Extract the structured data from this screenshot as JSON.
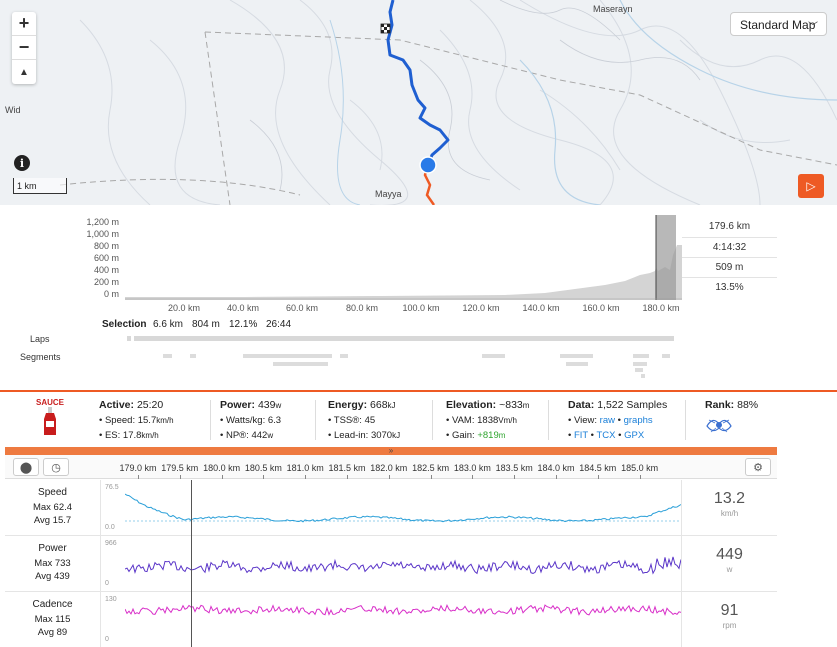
{
  "map": {
    "zoom_in": "+",
    "zoom_out": "−",
    "compass": "▲",
    "info": "i",
    "scale_label": "1 km",
    "place_labels": [
      "Maserayn",
      "Wid",
      "Mayya"
    ],
    "map_type": "Standard Map",
    "colors": {
      "route": "#1f5fd1",
      "route_tail": "#ee5a24",
      "marker": "#2a7be8"
    }
  },
  "elevation": {
    "y_labels": [
      "1,200 m",
      "1,000 m",
      "800 m",
      "600 m",
      "400 m",
      "200 m",
      "0 m"
    ],
    "x_labels": [
      "20.0 km",
      "40.0 km",
      "60.0 km",
      "80.0 km",
      "100.0 km",
      "120.0 km",
      "140.0 km",
      "160.0 km",
      "180.0 km"
    ],
    "stats": [
      "179.6 km",
      "4:14:32",
      "509 m",
      "13.5%"
    ],
    "selection": {
      "label": "Selection",
      "distance": "6.6 km",
      "elevation": "804 m",
      "grade": "12.1%",
      "time": "26:44"
    },
    "laps_label": "Laps",
    "segments_label": "Segments"
  },
  "info": {
    "logo": "SAUCE",
    "active": {
      "label": "Active:",
      "value": "25:20",
      "speed_label": "Speed:",
      "speed": "15.7",
      "speed_unit": "km/h",
      "es_label": "ES:",
      "es": "17.8",
      "es_unit": "km/h"
    },
    "power": {
      "label": "Power:",
      "value": "439",
      "unit": "w",
      "wkg_label": "Watts/kg:",
      "wkg": "6.3",
      "np_label": "NP®:",
      "np": "442",
      "np_unit": "w"
    },
    "energy": {
      "label": "Energy:",
      "value": "668",
      "unit": "kJ",
      "tss_label": "TSS®:",
      "tss": "45",
      "leadin_label": "Lead-in:",
      "leadin": "3070",
      "leadin_unit": "kJ"
    },
    "elevation": {
      "label": "Elevation:",
      "value": "~833",
      "unit": "m",
      "vam_label": "VAM:",
      "vam": "1838",
      "vam_unit": "Vm/h",
      "gain_label": "Gain:",
      "gain": "+819",
      "gain_unit": "m"
    },
    "data": {
      "label": "Data:",
      "value": "1,522 Samples",
      "view_label": "View:",
      "raw": "raw",
      "graphs": "graphs",
      "fit": "FIT",
      "tcx": "TCX",
      "gpx": "GPX"
    },
    "rank": {
      "label": "Rank:",
      "value": "88%"
    }
  },
  "streams": {
    "distance_labels": [
      "179.0 km",
      "179.5 km",
      "180.0 km",
      "180.5 km",
      "181.0 km",
      "181.5 km",
      "182.0 km",
      "182.5 km",
      "183.0 km",
      "183.5 km",
      "184.0 km",
      "184.5 km",
      "185.0 km"
    ],
    "rows": [
      {
        "title": "Speed",
        "max_label": "Max 62.4",
        "avg_label": "Avg 15.7",
        "ymax": "76.5",
        "ymin": "0.0",
        "value": "13.2",
        "unit": "km/h",
        "color": "#2a9fd8"
      },
      {
        "title": "Power",
        "max_label": "Max 733",
        "avg_label": "Avg 439",
        "ymax": "966",
        "ymin": "0",
        "value": "449",
        "unit": "w",
        "color": "#5a35c8"
      },
      {
        "title": "Cadence",
        "max_label": "Max 115",
        "avg_label": "Avg 89",
        "ymax": "130",
        "ymin": "0",
        "value": "91",
        "unit": "rpm",
        "color": "#d82ec8"
      }
    ]
  }
}
